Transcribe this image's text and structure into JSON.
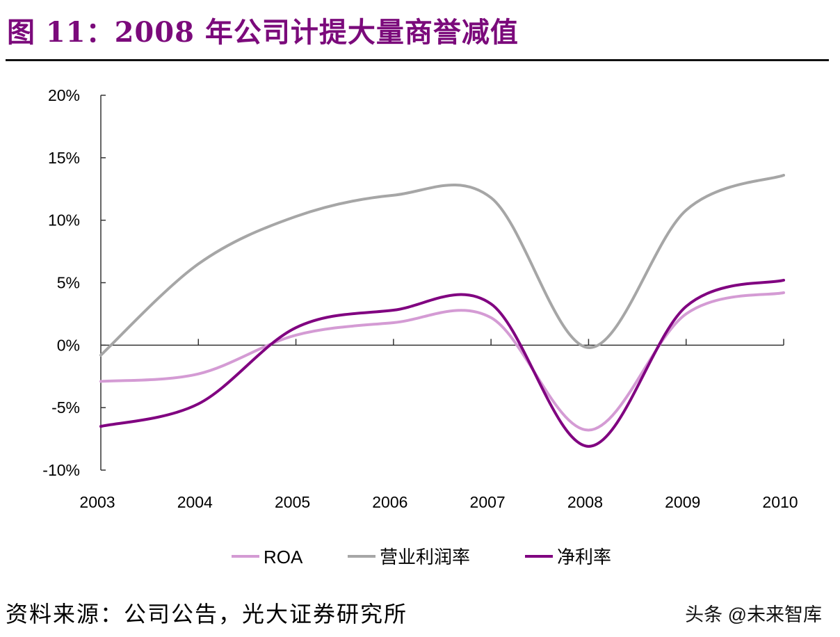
{
  "title": "图 11：2008 年公司计提大量商誉减值",
  "source": "资料来源：公司公告，光大证券研究所",
  "watermark": "头条 @未来智库",
  "chart_data": {
    "type": "line",
    "smooth": true,
    "categories": [
      "2003",
      "2004",
      "2005",
      "2006",
      "2007",
      "2008",
      "2009",
      "2010"
    ],
    "ylim": [
      -10,
      20
    ],
    "yticks": [
      20,
      15,
      10,
      5,
      0,
      -5,
      -10
    ],
    "ytick_labels": [
      "20%",
      "15%",
      "10%",
      "5%",
      "0%",
      "-5%",
      "-10%"
    ],
    "grid": false,
    "legend": "bottom",
    "series": [
      {
        "name": "ROA",
        "color": "#D49BD4",
        "values": [
          -2.9,
          -2.3,
          0.8,
          1.8,
          2.2,
          -6.8,
          2.5,
          4.2
        ]
      },
      {
        "name": "营业利润率",
        "color": "#A6A6A6",
        "values": [
          -0.8,
          6.5,
          10.3,
          12.0,
          11.8,
          -0.2,
          10.8,
          13.6
        ]
      },
      {
        "name": "净利率",
        "color": "#800080",
        "values": [
          -6.5,
          -4.7,
          1.4,
          2.8,
          3.3,
          -8.1,
          3.1,
          5.2
        ]
      }
    ]
  }
}
